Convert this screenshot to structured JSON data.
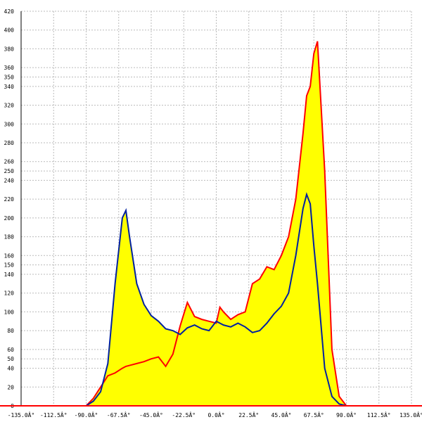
{
  "chart_data": {
    "type": "line",
    "x": [
      -90,
      -85,
      -80,
      -75,
      -70,
      -65,
      -62.5,
      -60,
      -55,
      -50,
      -45,
      -40,
      -35,
      -30,
      -25,
      -20,
      -15,
      -10,
      -5,
      0,
      2.5,
      5,
      10,
      15,
      20,
      25,
      30,
      35,
      40,
      45,
      50,
      55,
      60,
      62.5,
      65,
      67.5,
      70,
      75,
      80,
      85,
      90
    ],
    "series": [
      {
        "color": "#ff0000",
        "fill": "#ffff00",
        "values": [
          0,
          8,
          20,
          32,
          35,
          40,
          42,
          43,
          45,
          47,
          50,
          52,
          42,
          55,
          85,
          110,
          95,
          92,
          90,
          88,
          105,
          100,
          92,
          97,
          100,
          130,
          135,
          148,
          145,
          160,
          180,
          220,
          290,
          330,
          340,
          375,
          388,
          250,
          60,
          10,
          0
        ]
      },
      {
        "color": "#0020a0",
        "fill": "#ffff00",
        "values": [
          0,
          5,
          15,
          45,
          130,
          200,
          208,
          180,
          130,
          108,
          96,
          90,
          82,
          80,
          76,
          83,
          86,
          82,
          80,
          90,
          88,
          86,
          84,
          88,
          84,
          78,
          80,
          88,
          98,
          106,
          120,
          160,
          210,
          225,
          215,
          170,
          130,
          40,
          10,
          2,
          0
        ]
      }
    ],
    "xlim": [
      -135,
      135
    ],
    "xticks": [
      {
        "value": -135,
        "label": "-135.0Â°"
      },
      {
        "value": -112.5,
        "label": "-112.5Â°"
      },
      {
        "value": -90,
        "label": "-90.0Â°"
      },
      {
        "value": -67.5,
        "label": "-67.5Â°"
      },
      {
        "value": -45,
        "label": "-45.0Â°"
      },
      {
        "value": -22.5,
        "label": "-22.5Â°"
      },
      {
        "value": 0,
        "label": "0.0Â°"
      },
      {
        "value": 22.5,
        "label": "22.5Â°"
      },
      {
        "value": 45,
        "label": "45.0Â°"
      },
      {
        "value": 67.5,
        "label": "67.5Â°"
      },
      {
        "value": 90,
        "label": "90.0Â°"
      },
      {
        "value": 112.5,
        "label": "112.5Â°"
      },
      {
        "value": 135,
        "label": "135.0Â°"
      }
    ],
    "ylim": [
      0,
      420
    ],
    "yticks": [
      0,
      20,
      40,
      50,
      60,
      80,
      100,
      120,
      140,
      150,
      160,
      180,
      200,
      220,
      240,
      250,
      260,
      280,
      300,
      320,
      340,
      350,
      360,
      380,
      400,
      420
    ],
    "grid": true
  }
}
